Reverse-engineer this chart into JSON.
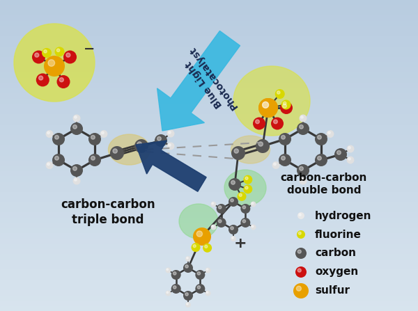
{
  "bg_top": "#b8cce0",
  "bg_bottom": "#d8e4ee",
  "arrow_blue": "#1e3f70",
  "arrow_cyan": "#38b8e0",
  "dash_color": "#999999",
  "hl_yellow": "#d8e050",
  "hl_tan": "#d8c878",
  "hl_green": "#90d890",
  "bond_color": "#383838",
  "carbon_col": "#555555",
  "H_col": "#e0e0e0",
  "F_col": "#d8d800",
  "S_col": "#e8a000",
  "O_col": "#cc1010",
  "label_left": "carbon-carbon\ntriple bond",
  "label_right": "carbon-carbon\ndouble bond",
  "label_arrow": "Blue Light\nPhotocatalyst",
  "legend": [
    {
      "label": "hydrogen",
      "color": "#e8e8e8"
    },
    {
      "label": "fluorine",
      "color": "#d8d800"
    },
    {
      "label": "carbon",
      "color": "#555555"
    },
    {
      "label": "oxygen",
      "color": "#cc1010"
    },
    {
      "label": "sulfur",
      "color": "#e8a000"
    }
  ],
  "legend_radii": [
    5,
    6,
    8,
    8,
    11
  ],
  "minus": "−",
  "plus": "+"
}
